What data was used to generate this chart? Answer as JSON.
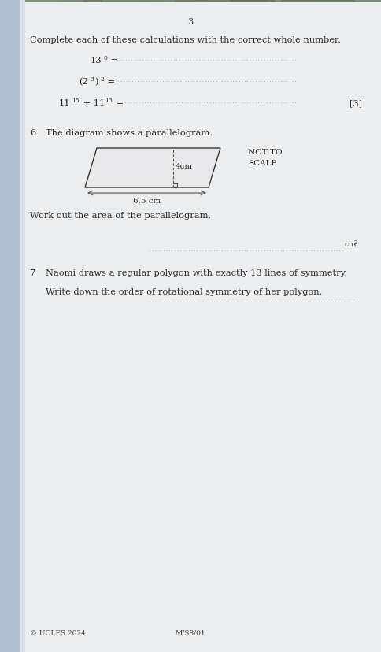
{
  "page_number": "3",
  "top_bg_color": "#9aaa9a",
  "page_color": "#e8e8ea",
  "spine_color": "#b8c8d8",
  "text_color": "#2a2a2a",
  "section_instruction": "Complete each of these calculations with the correct whole number.",
  "eq1": "13",
  "eq1_sup": "0",
  "eq1_rest": " =",
  "eq2": "(2",
  "eq2_sup1": "3",
  "eq2_mid": ")",
  "eq2_sup2": "2",
  "eq2_rest": " =",
  "eq3a": "11",
  "eq3a_sup": "15",
  "eq3b": " ÷ 11",
  "eq3b_sup": "13",
  "eq3c": " =",
  "marks3": "[3]",
  "q6_num": "6",
  "q6_text": "The diagram shows a parallelogram.",
  "not_to_scale_1": "NOT TO",
  "not_to_scale_2": "SCALE",
  "height_label": "4cm",
  "base_label": "6.5 cm",
  "q6_work": "Work out the area of the parallelogram.",
  "answer_suffix_q6": "cm",
  "answer_suffix_q6_sup": "2",
  "q7_num": "7",
  "q7_line1": "Naomi draws a regular polygon with exactly 13 lines of symmetry.",
  "q7_line2": "Write down the order of rotational symmetry of her polygon.",
  "footer_left": "© UCLES 2024",
  "footer_center": "M/S8/01",
  "dot_color": "#999999",
  "line_color": "#555555"
}
